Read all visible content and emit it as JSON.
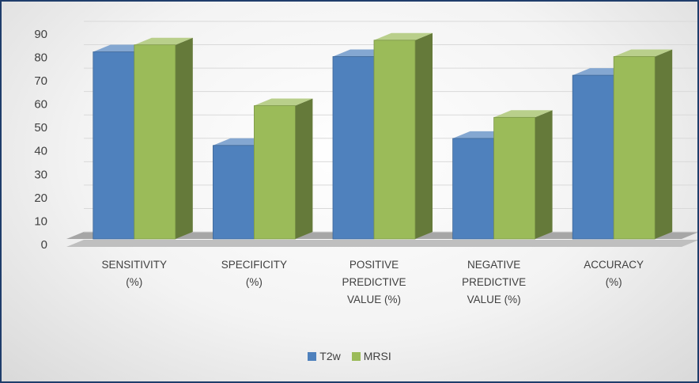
{
  "chart_data": {
    "type": "bar3d",
    "categories": [
      "SENSITIVITY (%)",
      "SPECIFICITY (%)",
      "POSITIVE PREDICTIVE VALUE (%)",
      "NEGATIVE PREDICTIVE VALUE (%)",
      "ACCURACY (%)"
    ],
    "series": [
      {
        "name": "T2w",
        "color": "#4f81bd",
        "values": [
          80,
          40,
          78,
          43,
          70
        ]
      },
      {
        "name": "MRSI",
        "color": "#9bbb59",
        "values": [
          83,
          57,
          85,
          52,
          78
        ]
      }
    ],
    "ylim": [
      0,
      90
    ],
    "yticks": [
      0,
      10,
      20,
      30,
      40,
      50,
      60,
      70,
      80,
      90
    ],
    "grid": true,
    "legend": "bottom"
  }
}
